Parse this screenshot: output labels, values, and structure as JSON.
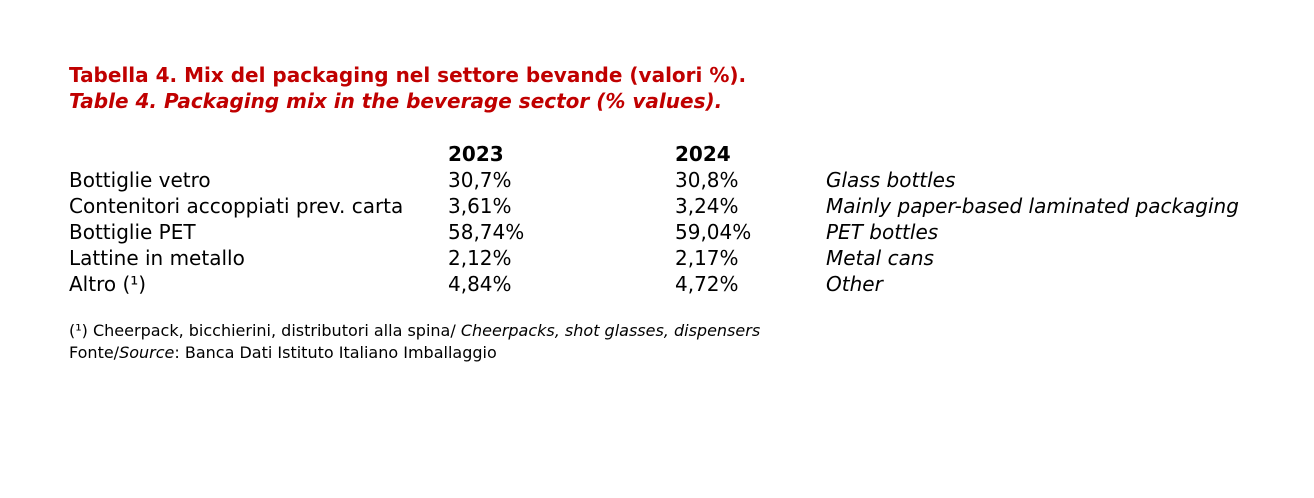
{
  "title": {
    "it": "Tabella 4. Mix del packaging nel settore bevande (valori %).",
    "en": "Table 4. Packaging mix in the beverage sector (% values)."
  },
  "table": {
    "headers": [
      "2023",
      "2024"
    ],
    "rows": [
      {
        "label": "Bottiglie vetro",
        "v2023": "30,7%",
        "v2024": "30,8%",
        "en": "Glass bottles"
      },
      {
        "label": "Contenitori accoppiati prev. carta",
        "v2023": "3,61%",
        "v2024": "3,24%",
        "en": "Mainly paper-based laminated packaging"
      },
      {
        "label": "Bottiglie PET",
        "v2023": "58,74%",
        "v2024": "59,04%",
        "en": "PET bottles"
      },
      {
        "label": "Lattine in metallo",
        "v2023": "2,12%",
        "v2024": "2,17%",
        "en": "Metal cans"
      },
      {
        "label": "Altro (¹)",
        "v2023": "4,84%",
        "v2024": "4,72%",
        "en": "Other"
      }
    ]
  },
  "footnote": {
    "marker": "(¹) Cheerpack, bicchierini, distributori alla spina/ ",
    "marker_en": "Cheerpacks, shot glasses, dispensers",
    "source_label": "Fonte/",
    "source_label_en": "Source",
    "source_text": ": Banca Dati Istituto Italiano Imballaggio"
  },
  "colors": {
    "title": "#c00000",
    "text": "#000000",
    "background": "#ffffff"
  }
}
